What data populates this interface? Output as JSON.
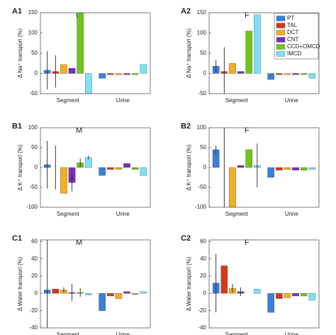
{
  "chart_data": [
    {
      "type": "bar",
      "panel": "A1",
      "label": "M",
      "ylabel": "Δ Na⁺ transport (%)",
      "categories": [
        "Segment",
        "Urine"
      ],
      "ylim": [
        -50,
        150
      ],
      "yticks": [
        -50,
        0,
        50,
        100,
        150
      ],
      "series": [
        {
          "name": "PT",
          "color": "#3b7fd8",
          "values": [
            8,
            -12
          ],
          "errors": [
            47,
            null
          ]
        },
        {
          "name": "TAL",
          "color": "#d43a1a",
          "values": [
            5,
            -3
          ],
          "errors": [
            40,
            null
          ]
        },
        {
          "name": "DCT",
          "color": "#f0b020",
          "values": [
            22,
            -3
          ],
          "errors": [
            null,
            null
          ]
        },
        {
          "name": "CNT",
          "color": "#7a2fb8",
          "values": [
            13,
            -3
          ],
          "errors": [
            null,
            null
          ]
        },
        {
          "name": "CCD+OMCD",
          "color": "#70c41c",
          "values": [
            150,
            -3
          ],
          "errors": [
            null,
            null
          ]
        },
        {
          "name": "IMCD",
          "color": "#7fe0f5",
          "values": [
            -50,
            22
          ],
          "errors": [
            null,
            null
          ]
        }
      ]
    },
    {
      "type": "bar",
      "panel": "A2",
      "label": "F",
      "ylabel": "Δ Na⁺ transport (%)",
      "categories": [
        "Segment",
        "Urine"
      ],
      "ylim": [
        -50,
        150
      ],
      "yticks": [
        -50,
        0,
        50,
        100,
        150
      ],
      "legend": "upper right",
      "series": [
        {
          "name": "PT",
          "color": "#3b7fd8",
          "values": [
            18,
            -15
          ],
          "errors": [
            15,
            null
          ]
        },
        {
          "name": "TAL",
          "color": "#d43a1a",
          "values": [
            5,
            -3
          ],
          "errors": [
            60,
            null
          ]
        },
        {
          "name": "DCT",
          "color": "#f0b020",
          "values": [
            25,
            -3
          ],
          "errors": [
            null,
            null
          ]
        },
        {
          "name": "CNT",
          "color": "#7a2fb8",
          "values": [
            5,
            -3
          ],
          "errors": [
            null,
            null
          ]
        },
        {
          "name": "CCD+OMCD",
          "color": "#70c41c",
          "values": [
            105,
            -3
          ],
          "errors": [
            null,
            null
          ]
        },
        {
          "name": "IMCD",
          "color": "#7fe0f5",
          "values": [
            145,
            -12
          ],
          "errors": [
            null,
            null
          ]
        }
      ]
    },
    {
      "type": "bar",
      "panel": "B1",
      "label": "M",
      "ylabel": "Δ K⁺ transport (%)",
      "categories": [
        "Segment",
        "Urine"
      ],
      "ylim": [
        -100,
        100
      ],
      "yticks": [
        -100,
        -50,
        0,
        50,
        100
      ],
      "series": [
        {
          "name": "PT",
          "color": "#3b7fd8",
          "values": [
            7,
            -20
          ],
          "errors": [
            60,
            null
          ]
        },
        {
          "name": "TAL",
          "color": "#d43a1a",
          "values": [
            0,
            -5
          ],
          "errors": [
            55,
            null
          ]
        },
        {
          "name": "DCT",
          "color": "#f0b020",
          "values": [
            -65,
            -5
          ],
          "errors": [
            null,
            null
          ]
        },
        {
          "name": "CNT",
          "color": "#7a2fb8",
          "values": [
            -38,
            10
          ],
          "errors": [
            22,
            null
          ]
        },
        {
          "name": "CCD+OMCD",
          "color": "#70c41c",
          "values": [
            12,
            -5
          ],
          "errors": [
            10,
            null
          ]
        },
        {
          "name": "IMCD",
          "color": "#7fe0f5",
          "values": [
            25,
            -20
          ],
          "errors": [
            5,
            null
          ]
        }
      ]
    },
    {
      "type": "bar",
      "panel": "B2",
      "label": "F",
      "ylabel": "Δ K⁺ transport (%)",
      "categories": [
        "Segment",
        "Urine"
      ],
      "ylim": [
        -100,
        100
      ],
      "yticks": [
        -100,
        -50,
        0,
        50,
        100
      ],
      "series": [
        {
          "name": "PT",
          "color": "#3b7fd8",
          "values": [
            45,
            -25
          ],
          "errors": [
            10,
            null
          ]
        },
        {
          "name": "TAL",
          "color": "#d43a1a",
          "values": [
            0,
            -7
          ],
          "errors": [
            100,
            null
          ]
        },
        {
          "name": "DCT",
          "color": "#f0b020",
          "values": [
            -100,
            -5
          ],
          "errors": [
            null,
            null
          ]
        },
        {
          "name": "CNT",
          "color": "#7a2fb8",
          "values": [
            5,
            -7
          ],
          "errors": [
            null,
            null
          ]
        },
        {
          "name": "CCD+OMCD",
          "color": "#70c41c",
          "values": [
            45,
            -7
          ],
          "errors": [
            null,
            null
          ]
        },
        {
          "name": "IMCD",
          "color": "#7fe0f5",
          "values": [
            5,
            -5
          ],
          "errors": [
            55,
            null
          ]
        }
      ]
    },
    {
      "type": "bar",
      "panel": "C1",
      "label": "M",
      "ylabel": "Δ Water transport (%)",
      "categories": [
        "Segment",
        "Urine"
      ],
      "ylim": [
        -40,
        62
      ],
      "yticks": [
        -40,
        -20,
        0,
        20,
        40,
        60
      ],
      "series": [
        {
          "name": "PT",
          "color": "#3b7fd8",
          "values": [
            4,
            -20
          ],
          "errors": [
            58,
            null
          ]
        },
        {
          "name": "TAL",
          "color": "#d43a1a",
          "values": [
            5,
            -3
          ],
          "errors": [
            null,
            null
          ]
        },
        {
          "name": "DCT",
          "color": "#f0b020",
          "values": [
            4,
            -6
          ],
          "errors": [
            3,
            null
          ]
        },
        {
          "name": "CNT",
          "color": "#7a2fb8",
          "values": [
            1,
            2
          ],
          "errors": [
            10,
            null
          ]
        },
        {
          "name": "CCD+OMCD",
          "color": "#70c41c",
          "values": [
            1,
            -1
          ],
          "errors": [
            5,
            null
          ]
        },
        {
          "name": "IMCD",
          "color": "#7fe0f5",
          "values": [
            -2,
            2
          ],
          "errors": [
            null,
            null
          ]
        }
      ]
    },
    {
      "type": "bar",
      "panel": "C2",
      "label": "F",
      "ylabel": "Δ Water transport (%)",
      "categories": [
        "Segment",
        "Urine"
      ],
      "ylim": [
        -40,
        62
      ],
      "yticks": [
        -40,
        -20,
        0,
        20,
        40,
        60
      ],
      "series": [
        {
          "name": "PT",
          "color": "#3b7fd8",
          "values": [
            12,
            -22
          ],
          "errors": [
            34,
            null
          ]
        },
        {
          "name": "TAL",
          "color": "#d43a1a",
          "values": [
            32,
            -6
          ],
          "errors": [
            null,
            null
          ]
        },
        {
          "name": "DCT",
          "color": "#f0b020",
          "values": [
            6,
            -5
          ],
          "errors": [
            5,
            null
          ]
        },
        {
          "name": "CNT",
          "color": "#7a2fb8",
          "values": [
            2,
            -3
          ],
          "errors": [
            5,
            null
          ]
        },
        {
          "name": "CCD+OMCD",
          "color": "#70c41c",
          "values": [
            0,
            -3
          ],
          "errors": [
            null,
            null
          ]
        },
        {
          "name": "IMCD",
          "color": "#7fe0f5",
          "values": [
            5,
            -8
          ],
          "errors": [
            null,
            null
          ]
        }
      ]
    }
  ]
}
